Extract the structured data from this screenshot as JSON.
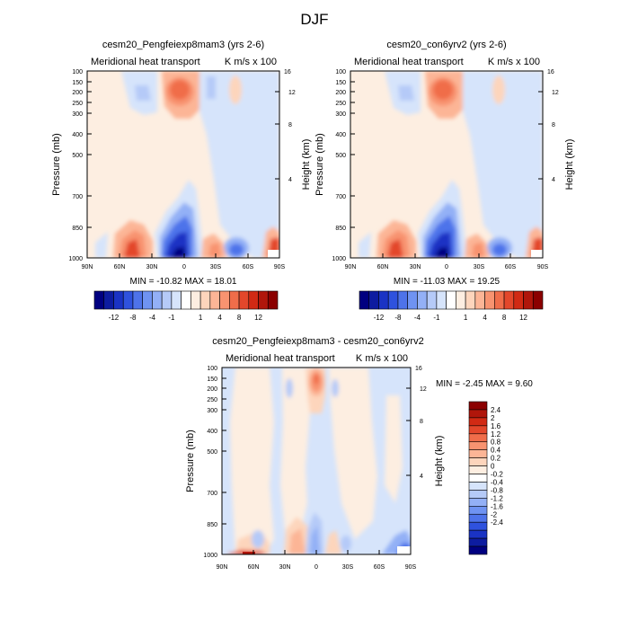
{
  "figure": {
    "title": "DJF"
  },
  "palette": {
    "blues": [
      "#000080",
      "#0d1ca0",
      "#1a33c4",
      "#2f52de",
      "#4e73ea",
      "#6f93f2",
      "#93b0f6",
      "#b5caf8",
      "#d6e4fb"
    ],
    "reds": [
      "#fdeee1",
      "#fdd5bc",
      "#fcb596",
      "#f89370",
      "#f06d4a",
      "#e3472b",
      "#d12a14",
      "#b0160b",
      "#8b0000"
    ],
    "neutral": "#ffffff"
  },
  "chart_data": [
    {
      "type": "contour",
      "title": "cesm20_Pengfeiexp8mam3 (yrs 2-6)",
      "left_label": "Meridional heat transport",
      "right_label": "K m/s x 100",
      "ylabel": "Pressure (mb)",
      "ylabel_right": "Height (km)",
      "x_ticks": [
        "90N",
        "60N",
        "30N",
        "0",
        "30S",
        "60S",
        "90S"
      ],
      "y_ticks": [
        "100",
        "150",
        "200",
        "250",
        "300",
        "400",
        "500",
        "700",
        "850",
        "1000"
      ],
      "y_ticks_right": [
        "16",
        "12",
        "8",
        "4"
      ],
      "stats": "MIN = -10.82  MAX = 18.01",
      "colorbar": {
        "orientation": "horizontal",
        "labels": [
          "-12",
          "-8",
          "-4",
          "-1",
          "1",
          "4",
          "8",
          "12"
        ]
      }
    },
    {
      "type": "contour",
      "title": "cesm20_con6yrv2 (yrs 2-6)",
      "left_label": "Meridional heat transport",
      "right_label": "K m/s x 100",
      "ylabel": "Pressure (mb)",
      "ylabel_right": "Height (km)",
      "x_ticks": [
        "90N",
        "60N",
        "30N",
        "0",
        "30S",
        "60S",
        "90S"
      ],
      "y_ticks": [
        "100",
        "150",
        "200",
        "250",
        "300",
        "400",
        "500",
        "700",
        "850",
        "1000"
      ],
      "y_ticks_right": [
        "16",
        "12",
        "8",
        "4"
      ],
      "stats": "MIN = -11.03  MAX =  19.25",
      "colorbar": {
        "orientation": "horizontal",
        "labels": [
          "-12",
          "-8",
          "-4",
          "-1",
          "1",
          "4",
          "8",
          "12"
        ]
      }
    },
    {
      "type": "contour",
      "title": "cesm20_Pengfeiexp8mam3 - cesm20_con6yrv2",
      "left_label": "Meridional heat transport",
      "right_label": "K m/s x 100",
      "ylabel": "Pressure (mb)",
      "ylabel_right": "Height (km)",
      "x_ticks": [
        "90N",
        "60N",
        "30N",
        "0",
        "30S",
        "60S",
        "90S"
      ],
      "y_ticks": [
        "100",
        "150",
        "200",
        "250",
        "300",
        "400",
        "500",
        "700",
        "850",
        "1000"
      ],
      "y_ticks_right": [
        "16",
        "12",
        "8",
        "4"
      ],
      "stats": "MIN =  -2.45  MAX =   9.60",
      "colorbar": {
        "orientation": "vertical",
        "labels": [
          "2.4",
          "2",
          "1.6",
          "1.2",
          "0.8",
          "0.4",
          "0.2",
          "0",
          "-0.2",
          "-0.4",
          "-0.8",
          "-1.2",
          "-1.6",
          "-2",
          "-2.4"
        ]
      }
    }
  ]
}
